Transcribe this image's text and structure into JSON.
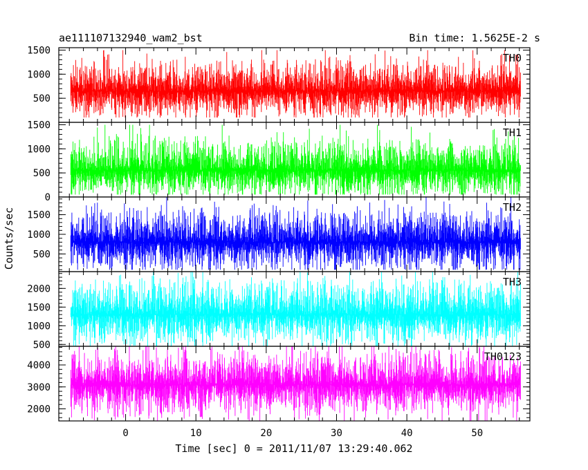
{
  "chart_data": {
    "type": "line",
    "title_left": "ae111107132940_wam2_bst",
    "title_right": "Bin time: 1.5625E-2 s",
    "xlabel": "Time [sec] 0 = 2011/11/07 13:29:40.062",
    "ylabel": "Counts/sec",
    "xlim": [
      -9.5,
      57.5
    ],
    "x_ticks": [
      0,
      10,
      20,
      30,
      40,
      50
    ],
    "data_x_range": [
      -7.8,
      56.2
    ],
    "bin_time": 0.015625,
    "grid": false,
    "panels": [
      {
        "name": "TH0",
        "color": "#ff0000",
        "ylim": [
          0,
          1550
        ],
        "yticks": [
          500,
          1000,
          1500
        ],
        "ytick_labels": [
          "500",
          "1000",
          "1500"
        ],
        "series": {
          "baseline": 100,
          "mean": 650,
          "peak": 1500
        }
      },
      {
        "name": "TH1",
        "color": "#00ff00",
        "ylim": [
          0,
          1550
        ],
        "yticks": [
          0,
          500,
          1000,
          1500
        ],
        "ytick_labels": [
          "0",
          "500",
          "1000",
          "1500"
        ],
        "series": {
          "baseline": 50,
          "mean": 550,
          "peak": 1500
        }
      },
      {
        "name": "TH2",
        "color": "#0000ff",
        "ylim": [
          50,
          1950
        ],
        "yticks": [
          500,
          1000,
          1500
        ],
        "ytick_labels": [
          "500",
          "1000",
          "1500"
        ],
        "series": {
          "baseline": 100,
          "mean": 800,
          "peak": 1950
        }
      },
      {
        "name": "TH3",
        "color": "#00ffff",
        "ylim": [
          450,
          2450
        ],
        "yticks": [
          500,
          1000,
          1500,
          2000
        ],
        "ytick_labels": [
          "500",
          "1000",
          "1500",
          "2000"
        ],
        "series": {
          "baseline": 450,
          "mean": 1300,
          "peak": 2450
        }
      },
      {
        "name": "TH0123",
        "color": "#ff00ff",
        "ylim": [
          1450,
          4850
        ],
        "yticks": [
          2000,
          3000,
          4000
        ],
        "ytick_labels": [
          "2000",
          "3000",
          "4000"
        ],
        "series": {
          "baseline": 1450,
          "mean": 3100,
          "peak": 4850
        }
      }
    ]
  }
}
